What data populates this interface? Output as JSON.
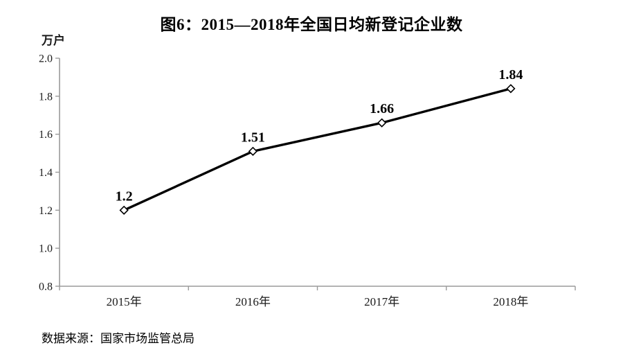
{
  "title": "图6：2015—2018年全国日均新登记企业数",
  "y_axis_unit": "万户",
  "source": "数据来源：国家市场监管总局",
  "chart_data": {
    "type": "line",
    "title": "图6：2015—2018年全国日均新登记企业数",
    "categories": [
      "2015年",
      "2016年",
      "2017年",
      "2018年"
    ],
    "values": [
      1.2,
      1.51,
      1.66,
      1.84
    ],
    "point_labels": [
      "1.2",
      "1.51",
      "1.66",
      "1.84"
    ],
    "xlabel": "",
    "ylabel": "万户",
    "ylim": [
      0.8,
      2.0
    ],
    "y_ticks": [
      0.8,
      1.0,
      1.2,
      1.4,
      1.6,
      1.8,
      2.0
    ],
    "y_tick_labels": [
      "0.8",
      "1.0",
      "1.2",
      "1.4",
      "1.6",
      "1.8",
      "2.0"
    ],
    "grid": false,
    "legend_position": "none",
    "line_color": "#000000",
    "marker": "open-diamond",
    "marker_fill": "#ffffff",
    "axis_color": "#9a9a9a",
    "label_color": "#000000"
  }
}
